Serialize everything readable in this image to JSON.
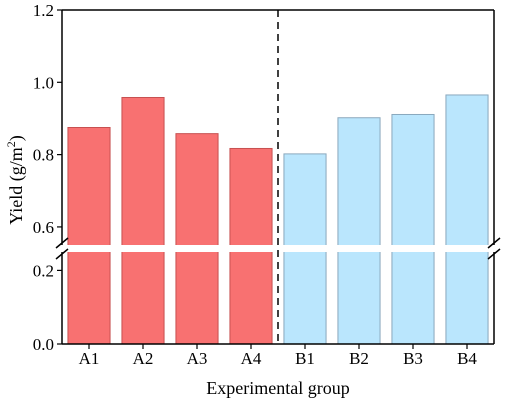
{
  "chart_data": {
    "type": "bar",
    "xlabel": "Experimental group",
    "ylabel": "Yield (g/m",
    "ylabel_superscript": "2",
    "ylabel_close": ")",
    "categories": [
      "A1",
      "A2",
      "A3",
      "A4",
      "B1",
      "B2",
      "B3",
      "B4"
    ],
    "values": [
      0.875,
      0.958,
      0.858,
      0.817,
      0.802,
      0.902,
      0.911,
      0.965
    ],
    "group_colors": {
      "A": "#f87171",
      "B": "#bae6fd"
    },
    "bar_edge_colors": {
      "A": "#c75050",
      "B": "#8aa8bd"
    },
    "axis_break": {
      "lower_range": [
        0.0,
        0.25
      ],
      "upper_range": [
        0.55,
        1.2
      ]
    },
    "y_ticks_lower": [
      0.0,
      0.2
    ],
    "y_ticks_upper": [
      0.6,
      0.8,
      1.0,
      1.2
    ],
    "y_tick_labels_lower": [
      "0.0",
      "0.2"
    ],
    "y_tick_labels_upper": [
      "0.6",
      "0.8",
      "1.0",
      "1.2"
    ],
    "divider_between": [
      "A4",
      "B1"
    ],
    "grid": false,
    "legend": "none"
  }
}
